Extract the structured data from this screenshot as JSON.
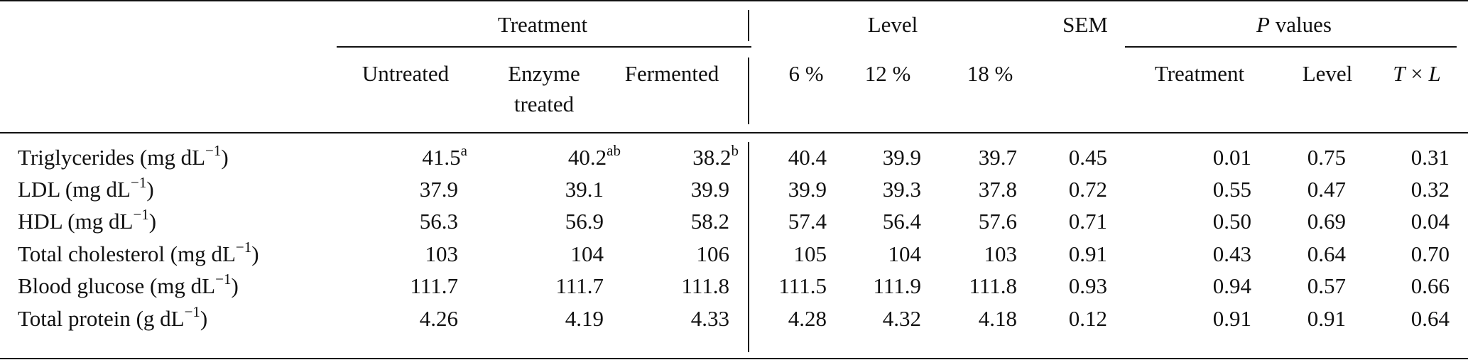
{
  "header": {
    "group_treatment": "Treatment",
    "group_level": "Level",
    "sem": "SEM",
    "p_values_italic": "P",
    "p_values_rest": " values",
    "columns": [
      {
        "line1": "Untreated",
        "line2": ""
      },
      {
        "line1": "Enzyme",
        "line2": "treated"
      },
      {
        "line1": "Fermented",
        "line2": ""
      },
      {
        "line1": "6 %",
        "line2": ""
      },
      {
        "line1": "12 %",
        "line2": ""
      },
      {
        "line1": "18 %",
        "line2": ""
      },
      {
        "line1": "",
        "line2": ""
      },
      {
        "line1": "Treatment",
        "line2": ""
      },
      {
        "line1": "Level",
        "line2": ""
      }
    ],
    "txl_t": "T",
    "txl_x": " × ",
    "txl_l": "L"
  },
  "rows": [
    {
      "label": "Triglycerides (mg dL",
      "unit_exp": "−1",
      "label_end": ")",
      "values": [
        "41.5",
        "40.2",
        "38.2",
        "40.4",
        "39.9",
        "39.7",
        "0.45",
        "0.01",
        "0.75",
        "0.31"
      ],
      "sups": [
        "a",
        "ab",
        "b",
        "",
        "",
        "",
        "",
        "",
        "",
        ""
      ]
    },
    {
      "label": "LDL (mg dL",
      "unit_exp": "−1",
      "label_end": ")",
      "values": [
        "37.9",
        "39.1",
        "39.9",
        "39.9",
        "39.3",
        "37.8",
        "0.72",
        "0.55",
        "0.47",
        "0.32"
      ],
      "sups": [
        "",
        "",
        "",
        "",
        "",
        "",
        "",
        "",
        "",
        ""
      ]
    },
    {
      "label": "HDL (mg dL",
      "unit_exp": "−1",
      "label_end": ")",
      "values": [
        "56.3",
        "56.9",
        "58.2",
        "57.4",
        "56.4",
        "57.6",
        "0.71",
        "0.50",
        "0.69",
        "0.04"
      ],
      "sups": [
        "",
        "",
        "",
        "",
        "",
        "",
        "",
        "",
        "",
        ""
      ]
    },
    {
      "label": "Total cholesterol (mg dL",
      "unit_exp": "−1",
      "label_end": ")",
      "values": [
        "103",
        "104",
        "106",
        "105",
        "104",
        "103",
        "0.91",
        "0.43",
        "0.64",
        "0.70"
      ],
      "sups": [
        "",
        "",
        "",
        "",
        "",
        "",
        "",
        "",
        "",
        ""
      ]
    },
    {
      "label": "Blood glucose (mg dL",
      "unit_exp": "−1",
      "label_end": ")",
      "values": [
        "111.7",
        "111.7",
        "111.8",
        "111.5",
        "111.9",
        "111.8",
        "0.93",
        "0.94",
        "0.57",
        "0.66"
      ],
      "sups": [
        "",
        "",
        "",
        "",
        "",
        "",
        "",
        "",
        "",
        ""
      ]
    },
    {
      "label": "Total protein (g dL",
      "unit_exp": "−1",
      "label_end": ")",
      "values": [
        "4.26",
        "4.19",
        "4.33",
        "4.28",
        "4.32",
        "4.18",
        "0.12",
        "0.91",
        "0.91",
        "0.64"
      ],
      "sups": [
        "",
        "",
        "",
        "",
        "",
        "",
        "",
        "",
        "",
        ""
      ]
    }
  ]
}
